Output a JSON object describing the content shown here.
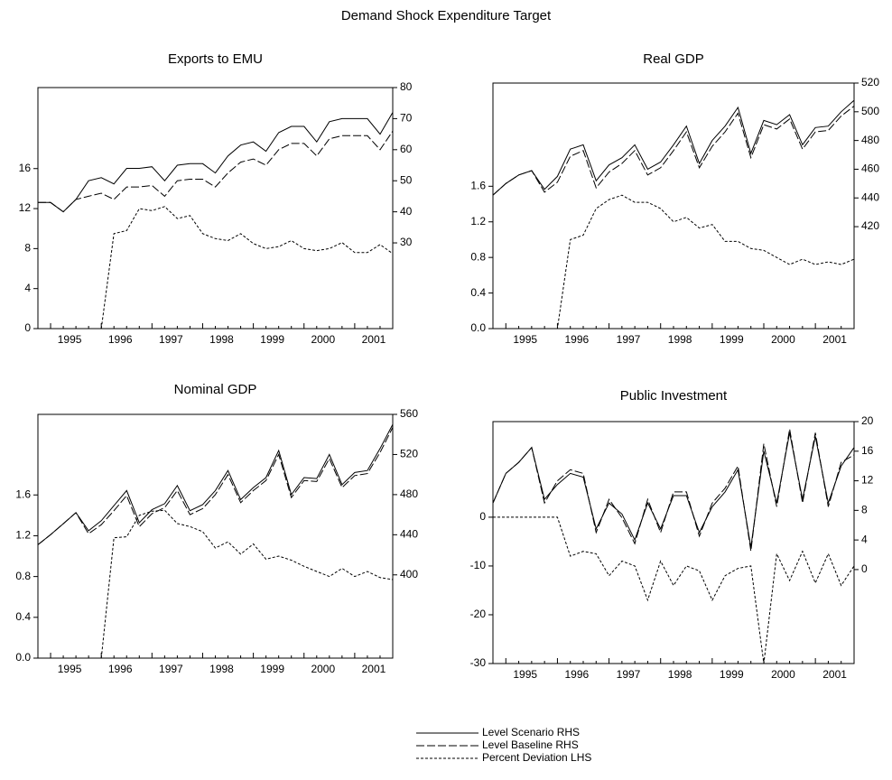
{
  "title": "Demand Shock Expenditure Target",
  "legend": [
    {
      "name": "Level Scenario  RHS",
      "dash": "none"
    },
    {
      "name": "Level Baseline  RHS",
      "dash": "9,3"
    },
    {
      "name": "Percent Deviation  LHS",
      "dash": "3,2"
    }
  ],
  "chart_data": [
    {
      "type": "line",
      "title": "Exports to EMU",
      "categories": [
        null,
        null,
        "1995",
        null,
        null,
        null,
        "1996",
        null,
        null,
        null,
        "1997",
        null,
        null,
        null,
        "1998",
        null,
        null,
        null,
        "1999",
        null,
        null,
        null,
        "2000",
        null,
        null,
        null,
        "2001",
        null,
        null
      ],
      "ylim": [
        0,
        24.1
      ],
      "yticks": [
        0,
        4,
        8,
        12,
        16
      ],
      "y2lim": [
        2.4,
        80
      ],
      "y2ticks": [
        30,
        40,
        50,
        60,
        70,
        80
      ],
      "series": [
        {
          "axis": "y2",
          "color": "#000000",
          "values": [
            43,
            43,
            40,
            44,
            50,
            51,
            49,
            54,
            54,
            54.5,
            50,
            55,
            55.5,
            55.5,
            52.5,
            58,
            61.5,
            62.5,
            59.5,
            65.5,
            67.5,
            67.5,
            62.5,
            69,
            70,
            70,
            70,
            65,
            72
          ]
        },
        {
          "axis": "y2",
          "color": "#000000",
          "values": [
            43,
            43,
            40,
            44,
            45,
            46,
            44,
            48,
            48,
            48.5,
            45,
            50,
            50.5,
            50.5,
            48,
            52.5,
            56,
            57,
            55,
            60,
            62,
            62,
            58,
            63.5,
            64.5,
            64.5,
            64.5,
            60,
            66
          ]
        },
        {
          "axis": "y",
          "color": "#000000",
          "values": [
            0,
            0,
            0,
            0,
            0,
            0,
            9.5,
            9.8,
            12,
            11.8,
            12.2,
            11,
            11.3,
            9.5,
            9,
            8.8,
            9.5,
            8.5,
            8,
            8.2,
            8.8,
            8,
            7.8,
            8,
            8.6,
            7.6,
            7.6,
            8.4,
            7.5
          ]
        }
      ]
    },
    {
      "type": "line",
      "title": "Real GDP",
      "categories": [
        null,
        null,
        "1995",
        null,
        null,
        null,
        "1996",
        null,
        null,
        null,
        "1997",
        null,
        null,
        null,
        "1998",
        null,
        null,
        null,
        "1999",
        null,
        null,
        null,
        "2000",
        null,
        null,
        null,
        "2001",
        null,
        null
      ],
      "ylim": [
        0,
        2.76
      ],
      "yticks": [
        {
          "value": 0,
          "label": "0.0"
        },
        0.4,
        0.8,
        1.2,
        1.6
      ],
      "y2lim": [
        349,
        520
      ],
      "y2ticks": [
        420,
        440,
        460,
        480,
        500,
        520
      ],
      "series": [
        {
          "axis": "y2",
          "color": "#000000",
          "values": [
            442,
            450,
            456,
            459,
            446,
            455,
            474,
            477,
            452,
            463,
            468,
            477,
            460,
            465,
            477,
            490,
            464,
            480,
            490,
            503,
            471,
            494,
            491,
            498,
            477,
            489,
            490,
            500,
            508
          ]
        },
        {
          "axis": "y2",
          "color": "#000000",
          "values": [
            442,
            450,
            456,
            459,
            444,
            451,
            469,
            473,
            447,
            458,
            464,
            473,
            456,
            461,
            473,
            486,
            461,
            476,
            486,
            499,
            468,
            491,
            488,
            495,
            474,
            486,
            487,
            497,
            504
          ]
        },
        {
          "axis": "y",
          "color": "#000000",
          "values": [
            0,
            0,
            0,
            0,
            0,
            0,
            1.0,
            1.05,
            1.35,
            1.45,
            1.5,
            1.42,
            1.42,
            1.35,
            1.2,
            1.25,
            1.13,
            1.17,
            0.98,
            0.98,
            0.9,
            0.88,
            0.8,
            0.72,
            0.78,
            0.72,
            0.75,
            0.72,
            0.78
          ]
        }
      ]
    },
    {
      "type": "line",
      "title": "Nominal GDP",
      "categories": [
        null,
        null,
        "1995",
        null,
        null,
        null,
        "1996",
        null,
        null,
        null,
        "1997",
        null,
        null,
        null,
        "1998",
        null,
        null,
        null,
        "1999",
        null,
        null,
        null,
        "2000",
        null,
        null,
        null,
        "2001",
        null,
        null
      ],
      "ylim": [
        0,
        2.39
      ],
      "yticks": [
        {
          "value": 0,
          "label": "0.0"
        },
        0.4,
        0.8,
        1.2,
        1.6
      ],
      "y2lim": [
        317,
        560
      ],
      "y2ticks": [
        400,
        440,
        480,
        520,
        560
      ],
      "series": [
        {
          "axis": "y2",
          "color": "#000000",
          "values": [
            430,
            440,
            451,
            462,
            444,
            454,
            469,
            484,
            452,
            465,
            471,
            489,
            464,
            470,
            484,
            504,
            475,
            487,
            497,
            524,
            480,
            497,
            496,
            520,
            490,
            502,
            504,
            526,
            550
          ]
        },
        {
          "axis": "y2",
          "color": "#000000",
          "values": [
            430,
            440,
            451,
            462,
            441,
            450,
            464,
            479,
            448,
            461,
            467,
            484,
            460,
            466,
            480,
            500,
            472,
            484,
            494,
            520,
            477,
            494,
            493,
            516,
            487,
            499,
            501,
            522,
            547
          ]
        },
        {
          "axis": "y",
          "color": "#000000",
          "values": [
            0,
            0,
            0,
            0,
            0,
            0,
            1.18,
            1.19,
            1.4,
            1.44,
            1.45,
            1.32,
            1.29,
            1.24,
            1.08,
            1.14,
            1.02,
            1.12,
            0.97,
            1.0,
            0.96,
            0.9,
            0.85,
            0.8,
            0.88,
            0.8,
            0.85,
            0.79,
            0.77
          ]
        }
      ]
    },
    {
      "type": "line",
      "title": "Public Investment",
      "categories": [
        null,
        null,
        "1995",
        null,
        null,
        null,
        "1996",
        null,
        null,
        null,
        "1997",
        null,
        null,
        null,
        "1998",
        null,
        null,
        null,
        "1999",
        null,
        null,
        null,
        "2000",
        null,
        null,
        null,
        "2001",
        null,
        null
      ],
      "ylim": [
        -30,
        19.6
      ],
      "yticks": [
        -30,
        -20,
        -10,
        0
      ],
      "y2lim": [
        -12.7,
        20
      ],
      "y2ticks": [
        0,
        4,
        8,
        12,
        16,
        20
      ],
      "series": [
        {
          "axis": "y2",
          "color": "#000000",
          "values": [
            9,
            13,
            14.5,
            16.5,
            9.5,
            11.5,
            13,
            12.5,
            5.5,
            9,
            7.5,
            4,
            9,
            5.5,
            10,
            10,
            5,
            8.5,
            10.5,
            13.5,
            3,
            16,
            9,
            18.5,
            9.5,
            18,
            9,
            14,
            16.5
          ]
        },
        {
          "axis": "y2",
          "color": "#000000",
          "values": [
            9,
            13,
            14.5,
            16.5,
            9,
            12,
            13.5,
            13,
            5,
            9.5,
            7,
            3.5,
            9.5,
            5,
            10.5,
            10.5,
            4.5,
            9,
            11,
            14,
            2.5,
            17,
            8.5,
            19,
            9,
            18.5,
            8.5,
            14.5,
            15.5
          ]
        },
        {
          "axis": "y",
          "color": "#000000",
          "values": [
            0,
            0,
            0,
            0,
            0,
            0,
            -8,
            -7,
            -7.5,
            -12,
            -9,
            -10,
            -17,
            -9,
            -14,
            -10,
            -11,
            -17,
            -12,
            -10.5,
            -10,
            -30,
            -7.5,
            -13,
            -7,
            -13.5,
            -7.5,
            -14,
            -10
          ]
        }
      ]
    }
  ]
}
